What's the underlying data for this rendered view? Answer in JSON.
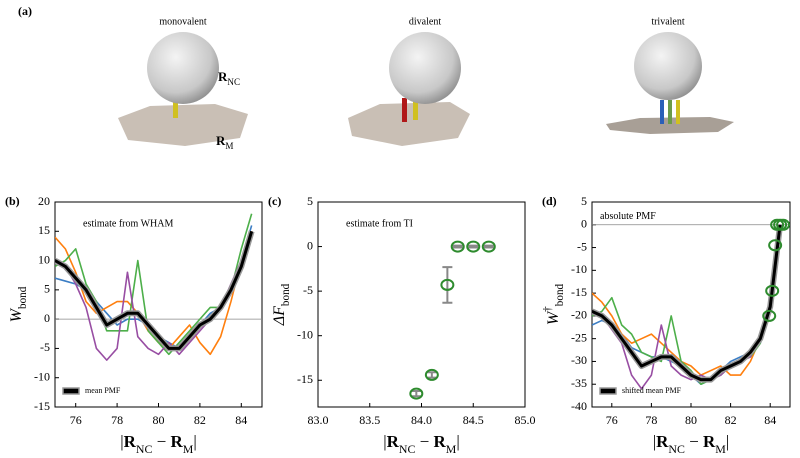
{
  "panel_a": {
    "label": "(a)",
    "titles": [
      "monovalent",
      "divalent",
      "trivalent"
    ],
    "r_nc": [
      {
        "text": "R",
        "bold": true
      },
      {
        "text": "NC",
        "sub": true
      }
    ],
    "r_m": [
      {
        "text": "R",
        "bold": true
      },
      {
        "text": "M",
        "sub": true
      }
    ]
  },
  "chart_data": [
    {
      "type": "line",
      "panel": "(b)",
      "annotation": "estimate from WHAM",
      "ylabel": [
        {
          "text": "W",
          "italic": true
        },
        {
          "text": "bond",
          "sub": true
        }
      ],
      "xlabel": [
        {
          "text": "|"
        },
        {
          "text": "R",
          "bold": true
        },
        {
          "text": "NC",
          "sub": true
        },
        {
          "text": " − "
        },
        {
          "text": "R",
          "bold": true
        },
        {
          "text": "M",
          "sub": true
        },
        {
          "text": "|"
        }
      ],
      "xlim": [
        75,
        85
      ],
      "ylim": [
        -15,
        20
      ],
      "xticks": [
        76,
        78,
        80,
        82,
        84
      ],
      "yticks": [
        -15,
        -10,
        -5,
        0,
        5,
        10,
        15,
        20
      ],
      "hline": 0,
      "legend": "lower left",
      "x": [
        75,
        75.5,
        76,
        76.5,
        77,
        77.5,
        78,
        78.5,
        79,
        79.5,
        80,
        80.5,
        81,
        81.5,
        82,
        82.5,
        83,
        83.5,
        84,
        84.5
      ],
      "series": [
        {
          "color": "#3b7dc4",
          "values": [
            7,
            6.5,
            6,
            5,
            3,
            1,
            -1,
            0,
            0,
            -1,
            -3,
            -4,
            -5,
            -3,
            -1,
            1,
            2,
            5,
            10,
            16
          ]
        },
        {
          "color": "#ff7f0e",
          "values": [
            14,
            12,
            8,
            3,
            1,
            2,
            3,
            3,
            1,
            -2,
            -4,
            -5,
            -3,
            -1,
            -4,
            -6,
            -3,
            3,
            10,
            15
          ]
        },
        {
          "color": "#4daf4a",
          "values": [
            9,
            10,
            12,
            6,
            3,
            -2,
            -2,
            -2,
            10,
            -2,
            -4,
            -6,
            -4,
            -2,
            0,
            2,
            2,
            5,
            12,
            18
          ]
        },
        {
          "color": "#984ea3",
          "values": [
            10,
            9,
            6,
            2,
            -5,
            -7,
            -5,
            8,
            -3,
            -5,
            -6,
            -4,
            -6,
            -4,
            -2,
            0,
            2,
            6,
            10,
            14
          ]
        },
        {
          "name": "mean PMF",
          "color": "#000000",
          "outline": "#999999",
          "values": [
            10,
            9,
            7,
            5,
            2,
            -1,
            0,
            1,
            1,
            -1,
            -3,
            -5,
            -5,
            -3,
            -1,
            0,
            2,
            5,
            9,
            15
          ]
        }
      ]
    },
    {
      "type": "scatter",
      "panel": "(c)",
      "annotation": "estimate from TI",
      "ylabel": [
        {
          "text": "ΔF",
          "italic": true
        },
        {
          "text": "bond",
          "sub": true
        }
      ],
      "xlabel": [
        {
          "text": "|"
        },
        {
          "text": "R",
          "bold": true
        },
        {
          "text": "NC",
          "sub": true
        },
        {
          "text": " − "
        },
        {
          "text": "R",
          "bold": true
        },
        {
          "text": "M",
          "sub": true
        },
        {
          "text": "|"
        }
      ],
      "xlim": [
        83,
        85
      ],
      "ylim": [
        -18,
        5
      ],
      "xticks": [
        {
          "value": 83,
          "label": "83.0"
        },
        83.5,
        {
          "value": 84,
          "label": "84.0"
        },
        84.5,
        {
          "value": 85,
          "label": "85.0"
        }
      ],
      "yticks": [
        -15,
        -10,
        -5,
        0,
        5
      ],
      "x": [
        83.95,
        84.1,
        84.25,
        84.35,
        84.5,
        84.65
      ],
      "series": [
        {
          "color": "#2e8b2e",
          "error_color": "#888888",
          "values": [
            -16.5,
            -14.4,
            -4.3,
            0,
            0,
            0
          ],
          "errors": [
            0.3,
            0.3,
            2,
            0.1,
            0.1,
            0.1
          ]
        }
      ]
    },
    {
      "type": "line",
      "panel": "(d)",
      "annotation": "absolute PMF",
      "ylabel": [
        {
          "text": "W",
          "italic": true
        },
        {
          "text": "†",
          "sup": true
        },
        {
          "text": "bond",
          "sub": true
        }
      ],
      "xlabel": [
        {
          "text": "|"
        },
        {
          "text": "R",
          "bold": true
        },
        {
          "text": "NC",
          "sub": true
        },
        {
          "text": " − "
        },
        {
          "text": "R",
          "bold": true
        },
        {
          "text": "M",
          "sub": true
        },
        {
          "text": "|"
        }
      ],
      "xlim": [
        75,
        85
      ],
      "ylim": [
        -40,
        5
      ],
      "xticks": [
        76,
        78,
        80,
        82,
        84
      ],
      "yticks": [
        -40,
        -35,
        -30,
        -25,
        -20,
        -15,
        -10,
        -5,
        0,
        5
      ],
      "hline": 0,
      "legend": "lower left",
      "x": [
        75,
        75.5,
        76,
        76.5,
        77,
        77.5,
        78,
        78.5,
        79,
        79.5,
        80,
        80.5,
        81,
        81.5,
        82,
        82.5,
        83,
        83.5,
        84,
        84.5
      ],
      "series": [
        {
          "color": "#3b7dc4",
          "values": [
            -22,
            -21,
            -22,
            -24,
            -27,
            -28,
            -29,
            -29,
            -30,
            -31,
            -33,
            -35,
            -34,
            -32,
            -30,
            -29,
            -28,
            -26,
            -18,
            0
          ]
        },
        {
          "color": "#ff7f0e",
          "values": [
            -15,
            -17,
            -20,
            -24,
            -26,
            -25,
            -24,
            -26,
            -28,
            -30,
            -31,
            -33,
            -32,
            -31,
            -33,
            -33,
            -30,
            -25,
            -18,
            0
          ]
        },
        {
          "color": "#4daf4a",
          "values": [
            -20,
            -19,
            -16,
            -22,
            -24,
            -28,
            -29,
            -30,
            -20,
            -30,
            -32,
            -35,
            -34,
            -33,
            -31,
            -30,
            -29,
            -26,
            -16,
            0
          ]
        },
        {
          "color": "#984ea3",
          "values": [
            -19,
            -20,
            -23,
            -26,
            -33,
            -36,
            -33,
            -22,
            -31,
            -33,
            -34,
            -33,
            -34,
            -33,
            -31,
            -30,
            -29,
            -24,
            -17,
            0
          ]
        },
        {
          "name": "shifted mean PMF",
          "color": "#000000",
          "outline": "#999999",
          "values": [
            -19,
            -20,
            -22,
            -25,
            -28,
            -31,
            -30,
            -29,
            -29,
            -31,
            -33,
            -34,
            -34,
            -32,
            -31,
            -30,
            -28,
            -25,
            -18,
            0
          ]
        },
        {
          "style": "markers",
          "color": "#2e8b2e",
          "x": [
            83.95,
            84.1,
            84.25,
            84.35,
            84.5,
            84.65
          ],
          "values": [
            -20,
            -14.5,
            -4.5,
            0,
            0,
            0
          ]
        }
      ]
    }
  ]
}
